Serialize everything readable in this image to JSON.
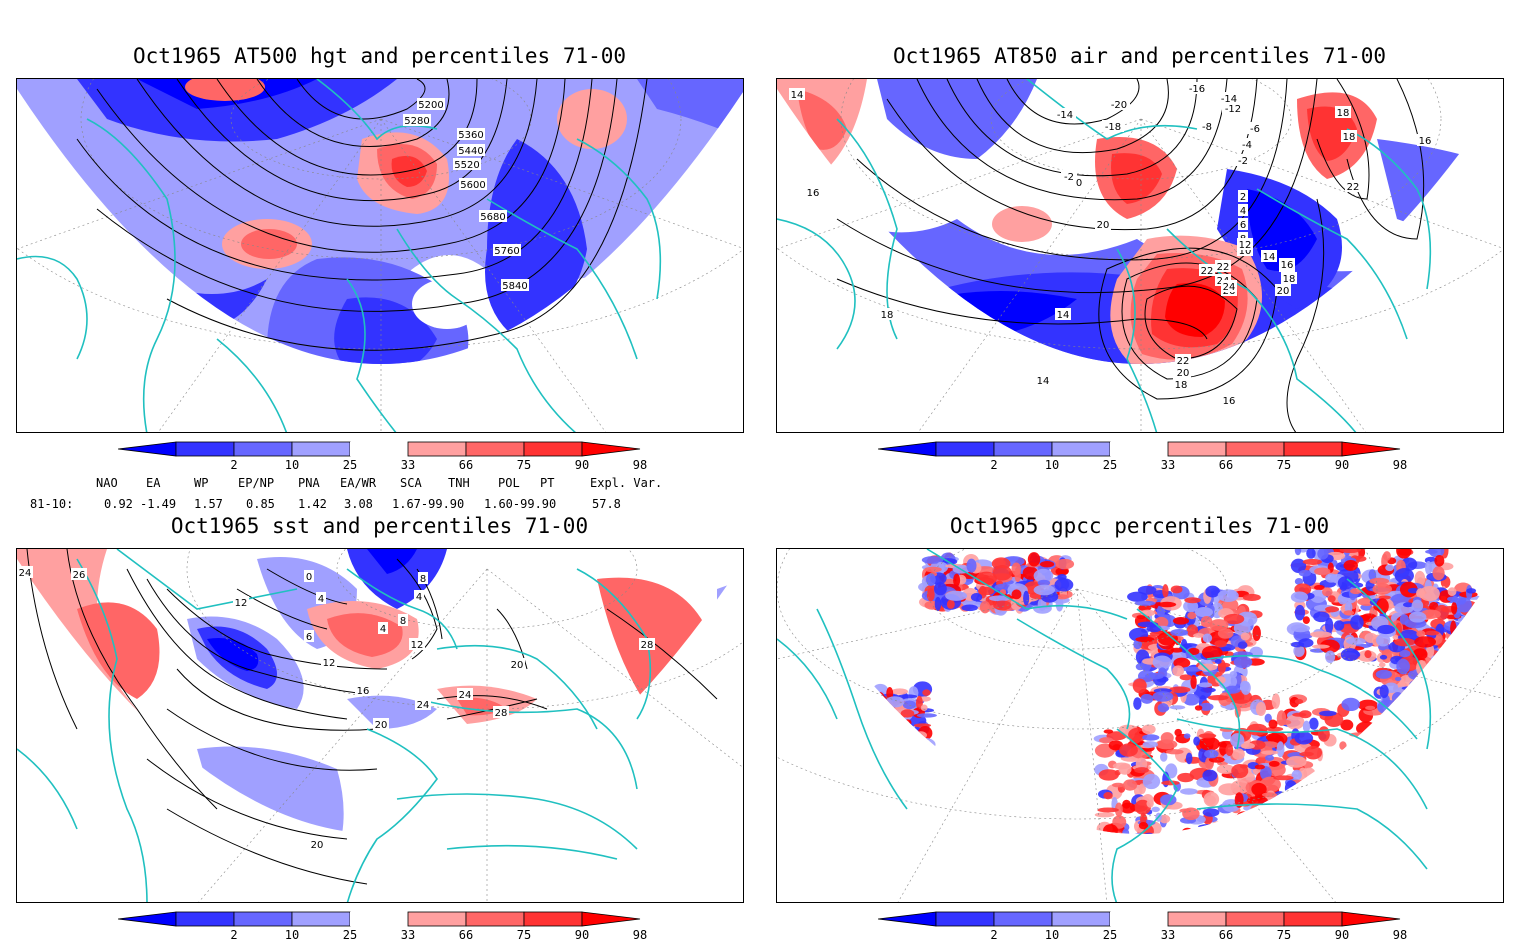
{
  "panels": [
    {
      "id": "hgt",
      "title": "Oct1965 AT500 hgt and percentiles 71-00",
      "contour_labels": [
        "5200",
        "5280",
        "5360",
        "5440",
        "5520",
        "5600",
        "5680",
        "5760",
        "5840"
      ]
    },
    {
      "id": "air",
      "title": "Oct1965 AT850 air and percentiles 71-00",
      "contour_labels": [
        "-16",
        "-14",
        "-12",
        "-20",
        "-18",
        "-8",
        "-14",
        "-6",
        "-4",
        "-2",
        "-2",
        "0",
        "2",
        "4",
        "6",
        "8",
        "10",
        "12",
        "14",
        "16",
        "18",
        "20",
        "22",
        "24",
        "26",
        "22",
        "20",
        "18",
        "16",
        "14",
        "14",
        "16",
        "18",
        "18",
        "20",
        "22",
        "24",
        "22",
        "18",
        "16",
        "16",
        "14"
      ]
    },
    {
      "id": "sst",
      "title": "Oct1965 sst and percentiles 71-00",
      "contour_labels": [
        "24",
        "26",
        "12",
        "0",
        "4",
        "8",
        "4",
        "6",
        "4",
        "8",
        "12",
        "12",
        "16",
        "20",
        "20",
        "24",
        "24",
        "28",
        "28",
        "20"
      ]
    },
    {
      "id": "gpcc",
      "title": "Oct1965 gpcc percentiles 71-00",
      "contour_labels": []
    }
  ],
  "colorbar": {
    "ticks": [
      "2",
      "10",
      "25",
      "33",
      "66",
      "75",
      "90",
      "98"
    ],
    "colors": {
      "c_lt2": "#0000ff",
      "c_2_10": "#3333ff",
      "c_10_25": "#6666ff",
      "c_25_33": "#a0a0ff",
      "c_mid": "#ffffff",
      "c_66_75": "#ffa0a0",
      "c_75_90": "#ff6666",
      "c_90_98": "#ff3333",
      "c_gt98": "#ff0000"
    }
  },
  "indices": {
    "headers": [
      "NAO",
      "EA",
      "WP",
      "EP/NP",
      "PNA",
      "EA/WR",
      "SCA",
      "TNH",
      "POL",
      "PT",
      "Expl. Var."
    ],
    "row_label": "81-10:",
    "values": [
      "0.92",
      "-1.49",
      "1.57",
      "0.85",
      "1.42",
      "3.08",
      "1.67-99.90",
      "1.60-99.90",
      "57.8"
    ]
  },
  "colors": {
    "coast": "#20c0c0",
    "contour": "#000000",
    "grid": "#888888"
  }
}
